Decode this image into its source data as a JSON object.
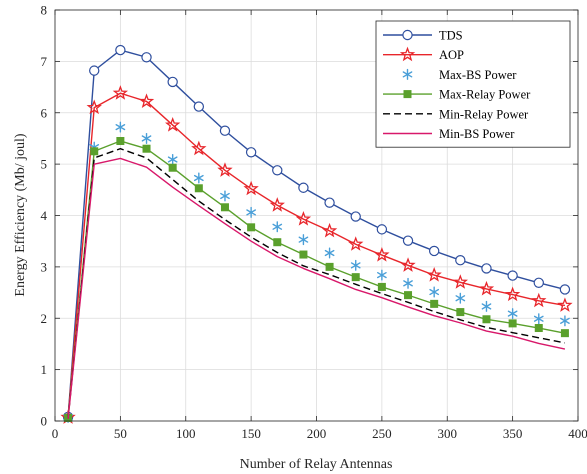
{
  "chart_data": {
    "type": "line",
    "title": "",
    "xlabel": "Number of Relay Antennas",
    "ylabel": "Energy Efficiency (Mb/ joul)",
    "xlim": [
      0,
      400
    ],
    "ylim": [
      0,
      8
    ],
    "xticks": [
      0,
      50,
      100,
      150,
      200,
      250,
      300,
      350,
      400
    ],
    "yticks": [
      0,
      1,
      2,
      3,
      4,
      5,
      6,
      7,
      8
    ],
    "grid": true,
    "legend_position": "top-right",
    "x": [
      10,
      30,
      50,
      70,
      90,
      110,
      130,
      150,
      170,
      190,
      210,
      230,
      250,
      270,
      290,
      310,
      330,
      350,
      370,
      390
    ],
    "series": [
      {
        "name": "TDS",
        "color": "#2f4f9e",
        "line": "solid",
        "marker": "circle-open",
        "values": [
          0.08,
          6.82,
          7.22,
          7.08,
          6.6,
          6.12,
          5.65,
          5.23,
          4.88,
          4.54,
          4.25,
          3.98,
          3.73,
          3.51,
          3.31,
          3.13,
          2.97,
          2.83,
          2.69,
          2.56
        ]
      },
      {
        "name": "AOP",
        "color": "#e8262b",
        "line": "solid",
        "marker": "star",
        "values": [
          0.07,
          6.1,
          6.38,
          6.22,
          5.76,
          5.3,
          4.88,
          4.52,
          4.2,
          3.93,
          3.7,
          3.44,
          3.23,
          3.03,
          2.84,
          2.7,
          2.57,
          2.46,
          2.34,
          2.25
        ]
      },
      {
        "name": "Max-BS Power",
        "color": "#4a9fd8",
        "line": "none",
        "marker": "asterisk",
        "values": [
          0.07,
          5.33,
          5.72,
          5.5,
          5.09,
          4.73,
          4.38,
          4.06,
          3.78,
          3.53,
          3.27,
          3.03,
          2.84,
          2.68,
          2.51,
          2.39,
          2.23,
          2.09,
          1.99,
          1.95
        ]
      },
      {
        "name": "Max-Relay Power",
        "color": "#5aa02c",
        "line": "solid",
        "marker": "square-filled",
        "values": [
          0.06,
          5.25,
          5.45,
          5.3,
          4.93,
          4.53,
          4.16,
          3.77,
          3.48,
          3.24,
          3.0,
          2.8,
          2.61,
          2.45,
          2.28,
          2.12,
          1.98,
          1.9,
          1.81,
          1.71
        ]
      },
      {
        "name": "Min-Relay Power",
        "color": "#000000",
        "line": "dashed",
        "marker": "none",
        "values": [
          0.05,
          5.12,
          5.3,
          5.12,
          4.7,
          4.28,
          3.92,
          3.58,
          3.28,
          3.02,
          2.85,
          2.66,
          2.48,
          2.31,
          2.13,
          1.97,
          1.82,
          1.72,
          1.62,
          1.52
        ]
      },
      {
        "name": "Min-BS Power",
        "color": "#d8186a",
        "line": "solid",
        "marker": "none",
        "values": [
          0.04,
          5.0,
          5.11,
          4.94,
          4.55,
          4.19,
          3.84,
          3.5,
          3.2,
          2.97,
          2.77,
          2.56,
          2.4,
          2.22,
          2.05,
          1.91,
          1.75,
          1.65,
          1.51,
          1.4
        ]
      }
    ]
  }
}
